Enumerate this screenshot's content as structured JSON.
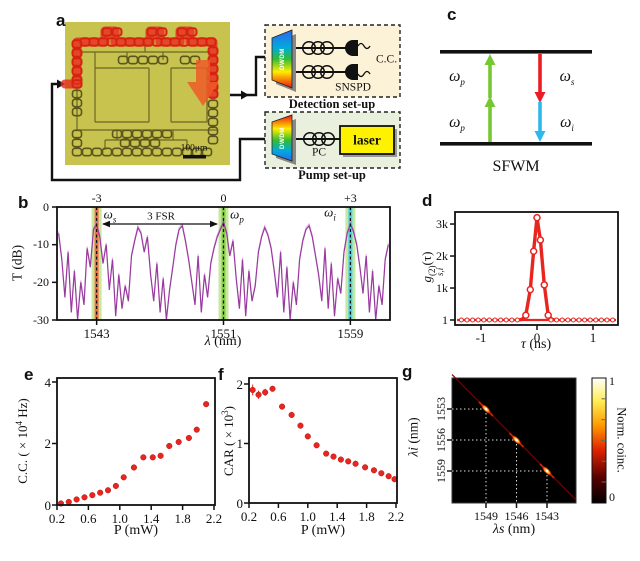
{
  "colors": {
    "data_red": "#e8251f",
    "trace_purple": "#993a9e",
    "trace_light": "#cf8fd6",
    "band_green": "#b4e07e",
    "signal_orange": "#ff5a32",
    "idler_cyan": "#3ecdf2",
    "pump_arrow_green": "#76c832",
    "signal_arrow_red": "#ed1c24",
    "idler_arrow_cyan": "#2bb8ea",
    "chip_olive": "#c8c24e",
    "laser_yellow": "#fff200",
    "detection_box": "#fbf2d8",
    "pump_box": "#e9f0dd"
  },
  "panels": {
    "a": {
      "label": "a",
      "chip": {
        "scalebar": "100μm"
      },
      "detection": {
        "title": "Detection set-up",
        "dwdm": "DWDM",
        "snspd": "SNSPD",
        "cc": "C.C."
      },
      "pump": {
        "title": "Pump set-up",
        "dwdm": "DWDM",
        "pc": "PC",
        "laser": "laser"
      }
    },
    "b": {
      "label": "b"
    },
    "c": {
      "label": "c",
      "title": "SFWM",
      "pump_top": {
        "sym": "ω",
        "sub": "p"
      },
      "pump_bottom": {
        "sym": "ω",
        "sub": "p"
      },
      "signal": {
        "sym": "ω",
        "sub": "s"
      },
      "idler": {
        "sym": "ω",
        "sub": "i"
      }
    },
    "d": {
      "label": "d"
    },
    "e": {
      "label": "e"
    },
    "f": {
      "label": "f"
    },
    "g": {
      "label": "g"
    }
  },
  "chart_data": [
    {
      "id": "b",
      "type": "line",
      "ylabel": "T (dB)",
      "xlabel_sym": "λ",
      "xlabel_unit": " (nm)",
      "xlim": [
        1540.5,
        1561.5
      ],
      "ylim": [
        -30,
        0
      ],
      "xticks": [
        "1543",
        "1551",
        "1559"
      ],
      "xtick_nm": [
        1543,
        1551,
        1559
      ],
      "yticks": [
        "0",
        "-10",
        "-20",
        "-30"
      ],
      "ytick_db": [
        0,
        -10,
        -20,
        -30
      ],
      "resonance_labels": [
        "-3",
        "0",
        "+3"
      ],
      "bands": [
        {
          "name": "signal",
          "wavelength": 1543,
          "sym": "ω",
          "sub": "s",
          "inner_color": "#ff5a32"
        },
        {
          "name": "pump",
          "wavelength": 1551,
          "sym": "ω",
          "sub": "p",
          "inner_color": "#79c838"
        },
        {
          "name": "idler",
          "wavelength": 1559,
          "sym": "ω",
          "sub": "i",
          "inner_color": "#3ecdf2"
        }
      ],
      "annotation": "3 FSR",
      "trace": {
        "x_start": 1540.6,
        "x_step": 0.2,
        "y_db": [
          -7,
          -14,
          -24,
          -12,
          -28,
          -17,
          -30,
          -20,
          -26,
          -11,
          -16,
          -6,
          -4.5,
          -8,
          -15,
          -10,
          -22,
          -14,
          -29,
          -18,
          -27,
          -21,
          -25,
          -13,
          -9,
          -5.5,
          -7,
          -12,
          -8,
          -18,
          -25,
          -15,
          -28,
          -19,
          -30,
          -22,
          -16,
          -10,
          -6,
          -5,
          -9,
          -14,
          -20,
          -26,
          -13,
          -28,
          -18,
          -24,
          -15,
          -11,
          -8,
          -6,
          -4,
          -7,
          -13,
          -9,
          -19,
          -27,
          -14,
          -29,
          -17,
          -25,
          -21,
          -12,
          -8,
          -5.5,
          -7.5,
          -11,
          -17,
          -24,
          -12,
          -28,
          -16,
          -30,
          -20,
          -26,
          -14,
          -9,
          -6,
          -5,
          -8,
          -13,
          -18,
          -25,
          -11,
          -27,
          -15,
          -29,
          -19,
          -23,
          -12,
          -7,
          -4.5,
          -6.5,
          -10,
          -16,
          -23,
          -13,
          -28,
          -17,
          -30,
          -21,
          -26,
          -14,
          -10
        ]
      }
    },
    {
      "id": "d",
      "type": "line",
      "ylabel_parts": {
        "base": "g",
        "sup": "(2)",
        "sub": "s,i",
        "tail": "(τ)"
      },
      "xlabel_sym": "τ",
      "xlabel_unit": " (ns)",
      "xticks": [
        "-1",
        "0",
        "1"
      ],
      "xtick_ns": [
        -1,
        0,
        1
      ],
      "yticks": [
        {
          "v": 1,
          "label": "1"
        },
        {
          "v": 1000,
          "label": "1k"
        },
        {
          "v": 2000,
          "label": "2k"
        },
        {
          "v": 3000,
          "label": "3k"
        }
      ],
      "baseline": 1,
      "x_range": [
        -1.45,
        1.4
      ],
      "peak_points": [
        [
          -0.2,
          150
        ],
        [
          -0.12,
          950
        ],
        [
          -0.06,
          2150
        ],
        [
          0,
          3200
        ],
        [
          0.06,
          2500
        ],
        [
          0.13,
          1100
        ],
        [
          0.2,
          150
        ]
      ]
    },
    {
      "id": "e",
      "type": "scatter",
      "xlabel": "P (mW)",
      "ylabel_parts": {
        "pre": "C.C. ( × 10",
        "sup": "4",
        "post": " Hz)"
      },
      "xticks": [
        "0.2",
        "0.6",
        "1.0",
        "1.4",
        "1.8",
        "2.2"
      ],
      "xtick_mw": [
        0.2,
        0.6,
        1.0,
        1.4,
        1.8,
        2.2
      ],
      "yticks": [
        "0",
        "2",
        "4"
      ],
      "ytick_v": [
        0,
        2,
        4
      ],
      "points": [
        [
          0.25,
          0.05
        ],
        [
          0.35,
          0.1
        ],
        [
          0.45,
          0.18
        ],
        [
          0.55,
          0.25
        ],
        [
          0.65,
          0.32
        ],
        [
          0.75,
          0.4
        ],
        [
          0.85,
          0.48
        ],
        [
          0.95,
          0.62
        ],
        [
          1.05,
          0.9
        ],
        [
          1.18,
          1.22
        ],
        [
          1.3,
          1.55
        ],
        [
          1.42,
          1.55
        ],
        [
          1.52,
          1.6
        ],
        [
          1.63,
          1.92
        ],
        [
          1.75,
          2.05
        ],
        [
          1.88,
          2.18
        ],
        [
          1.98,
          2.45
        ],
        [
          2.1,
          3.28
        ]
      ]
    },
    {
      "id": "f",
      "type": "scatter",
      "xlabel": "P (mW)",
      "ylabel_parts": {
        "pre": "CAR ( × 10",
        "sup": "3",
        "post": ")"
      },
      "xticks": [
        "0.2",
        "0.6",
        "1.0",
        "1.4",
        "1.8",
        "2.2"
      ],
      "xtick_mw": [
        0.2,
        0.6,
        1.0,
        1.4,
        1.8,
        2.2
      ],
      "yticks": [
        "0",
        "1",
        "2"
      ],
      "ytick_v": [
        0,
        1,
        2
      ],
      "points": [
        [
          0.25,
          1.9,
          0.09
        ],
        [
          0.33,
          1.82,
          0.07
        ],
        [
          0.42,
          1.86,
          0.06
        ],
        [
          0.52,
          1.92
        ],
        [
          0.65,
          1.62
        ],
        [
          0.78,
          1.48
        ],
        [
          0.9,
          1.3
        ],
        [
          1.0,
          1.12
        ],
        [
          1.12,
          0.97
        ],
        [
          1.25,
          0.83
        ],
        [
          1.35,
          0.78
        ],
        [
          1.45,
          0.73
        ],
        [
          1.55,
          0.7
        ],
        [
          1.65,
          0.66
        ],
        [
          1.78,
          0.6
        ],
        [
          1.9,
          0.55
        ],
        [
          2.0,
          0.5
        ],
        [
          2.1,
          0.45
        ],
        [
          2.18,
          0.4
        ]
      ]
    },
    {
      "id": "g",
      "type": "heatmap",
      "xlabel_sym": "λs",
      "xlabel_unit": " (nm)",
      "ylabel_sym": "λi",
      "ylabel_unit": " (nm)",
      "xticks": [
        "1549",
        "1546",
        "1543"
      ],
      "xtick_nm": [
        1549,
        1546,
        1543
      ],
      "yticks": [
        "1553",
        "1556",
        "1559"
      ],
      "ytick_nm": [
        1553,
        1556,
        1559
      ],
      "correlation_peaks": [
        {
          "signal_nm": 1549,
          "idler_nm": 1553
        },
        {
          "signal_nm": 1546,
          "idler_nm": 1556
        },
        {
          "signal_nm": 1543,
          "idler_nm": 1559
        }
      ],
      "colorbar": {
        "label": "Norm. coinc.",
        "tick_top": "1",
        "tick_bottom": "0"
      },
      "background": "#000000"
    }
  ]
}
